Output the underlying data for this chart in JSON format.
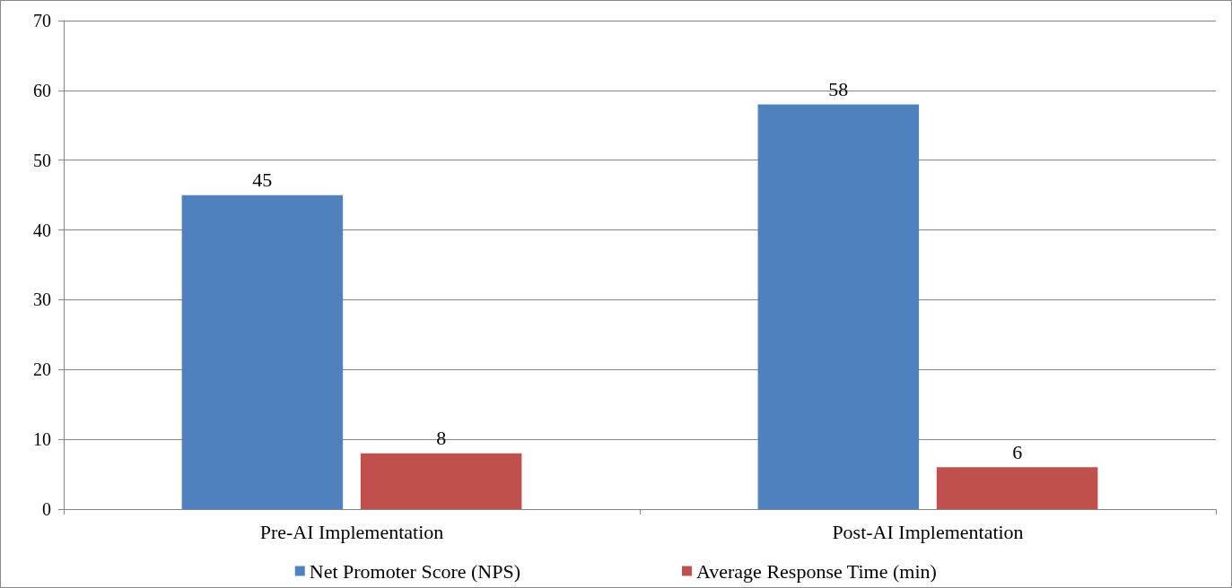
{
  "chart_data": {
    "type": "bar",
    "categories": [
      "Pre-AI Implementation",
      "Post-AI Implementation"
    ],
    "series": [
      {
        "name": "Net Promoter Score (NPS)",
        "color": "#4f81bd",
        "values": [
          45,
          58
        ]
      },
      {
        "name": "Average Response Time (min)",
        "color": "#c0504d",
        "values": [
          8,
          6
        ]
      }
    ],
    "ylim": [
      0,
      70
    ],
    "yticks": [
      0,
      10,
      20,
      30,
      40,
      50,
      60,
      70
    ],
    "grid": "y",
    "legend": "bottom",
    "data_labels": true
  }
}
